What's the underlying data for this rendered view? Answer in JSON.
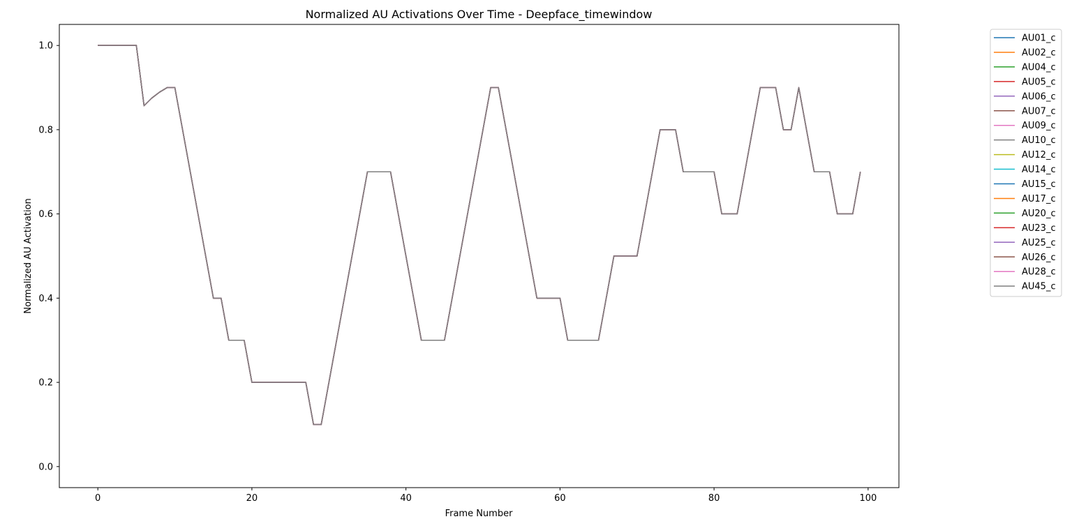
{
  "chart_data": {
    "type": "line",
    "title": "Normalized AU Activations Over Time - Deepface_timewindow",
    "xlabel": "Frame Number",
    "ylabel": "Normalized AU Activation",
    "xlim": [
      -5,
      104
    ],
    "ylim": [
      -0.05,
      1.05
    ],
    "x_ticks": [
      0,
      20,
      40,
      60,
      80,
      100
    ],
    "y_ticks": [
      0.0,
      0.2,
      0.4,
      0.6,
      0.8,
      1.0
    ],
    "x_tick_labels": [
      "0",
      "20",
      "40",
      "60",
      "80",
      "100"
    ],
    "y_tick_labels": [
      "0.0",
      "0.2",
      "0.4",
      "0.6",
      "0.8",
      "1.0"
    ],
    "grid": false,
    "legend_position": "outside-right",
    "x": [
      0,
      1,
      2,
      3,
      4,
      5,
      6,
      7,
      8,
      9,
      10,
      11,
      12,
      13,
      14,
      15,
      16,
      17,
      18,
      19,
      20,
      21,
      22,
      23,
      24,
      25,
      26,
      27,
      28,
      29,
      30,
      31,
      32,
      33,
      34,
      35,
      36,
      37,
      38,
      39,
      40,
      41,
      42,
      43,
      44,
      45,
      46,
      47,
      48,
      49,
      50,
      51,
      52,
      53,
      54,
      55,
      56,
      57,
      58,
      59,
      60,
      61,
      62,
      63,
      64,
      65,
      66,
      67,
      68,
      69,
      70,
      71,
      72,
      73,
      74,
      75,
      76,
      77,
      78,
      79,
      80,
      81,
      82,
      83,
      84,
      85,
      86,
      87,
      88,
      89,
      90,
      91,
      92,
      93,
      94,
      95,
      96,
      97,
      98,
      99
    ],
    "values": [
      1.0,
      1.0,
      1.0,
      1.0,
      1.0,
      1.0,
      0.857,
      0.875,
      0.889,
      0.9,
      0.9,
      0.8,
      0.7,
      0.6,
      0.5,
      0.4,
      0.4,
      0.3,
      0.3,
      0.3,
      0.2,
      0.2,
      0.2,
      0.2,
      0.2,
      0.2,
      0.2,
      0.2,
      0.1,
      0.1,
      0.2,
      0.3,
      0.4,
      0.5,
      0.6,
      0.7,
      0.7,
      0.7,
      0.7,
      0.6,
      0.5,
      0.4,
      0.3,
      0.3,
      0.3,
      0.3,
      0.4,
      0.5,
      0.6,
      0.7,
      0.8,
      0.9,
      0.9,
      0.8,
      0.7,
      0.6,
      0.5,
      0.4,
      0.4,
      0.4,
      0.4,
      0.3,
      0.3,
      0.3,
      0.3,
      0.3,
      0.4,
      0.5,
      0.5,
      0.5,
      0.5,
      0.6,
      0.7,
      0.8,
      0.8,
      0.8,
      0.7,
      0.7,
      0.7,
      0.7,
      0.7,
      0.6,
      0.6,
      0.6,
      0.7,
      0.8,
      0.9,
      0.9,
      0.9,
      0.8,
      0.8,
      0.9,
      0.8,
      0.7,
      0.7,
      0.7,
      0.6,
      0.6,
      0.6,
      0.7
    ],
    "series": [
      {
        "name": "AU01_c",
        "color": "#1f77b4"
      },
      {
        "name": "AU02_c",
        "color": "#ff7f0e"
      },
      {
        "name": "AU04_c",
        "color": "#2ca02c"
      },
      {
        "name": "AU05_c",
        "color": "#d62728"
      },
      {
        "name": "AU06_c",
        "color": "#9467bd"
      },
      {
        "name": "AU07_c",
        "color": "#8c564b"
      },
      {
        "name": "AU09_c",
        "color": "#e377c2"
      },
      {
        "name": "AU10_c",
        "color": "#7f7f7f"
      },
      {
        "name": "AU12_c",
        "color": "#bcbd22"
      },
      {
        "name": "AU14_c",
        "color": "#17becf"
      },
      {
        "name": "AU15_c",
        "color": "#1f77b4"
      },
      {
        "name": "AU17_c",
        "color": "#ff7f0e"
      },
      {
        "name": "AU20_c",
        "color": "#2ca02c"
      },
      {
        "name": "AU23_c",
        "color": "#d62728"
      },
      {
        "name": "AU25_c",
        "color": "#9467bd"
      },
      {
        "name": "AU26_c",
        "color": "#8c564b"
      },
      {
        "name": "AU28_c",
        "color": "#e377c2"
      },
      {
        "name": "AU45_c",
        "color": "#7f7f7f"
      }
    ]
  }
}
